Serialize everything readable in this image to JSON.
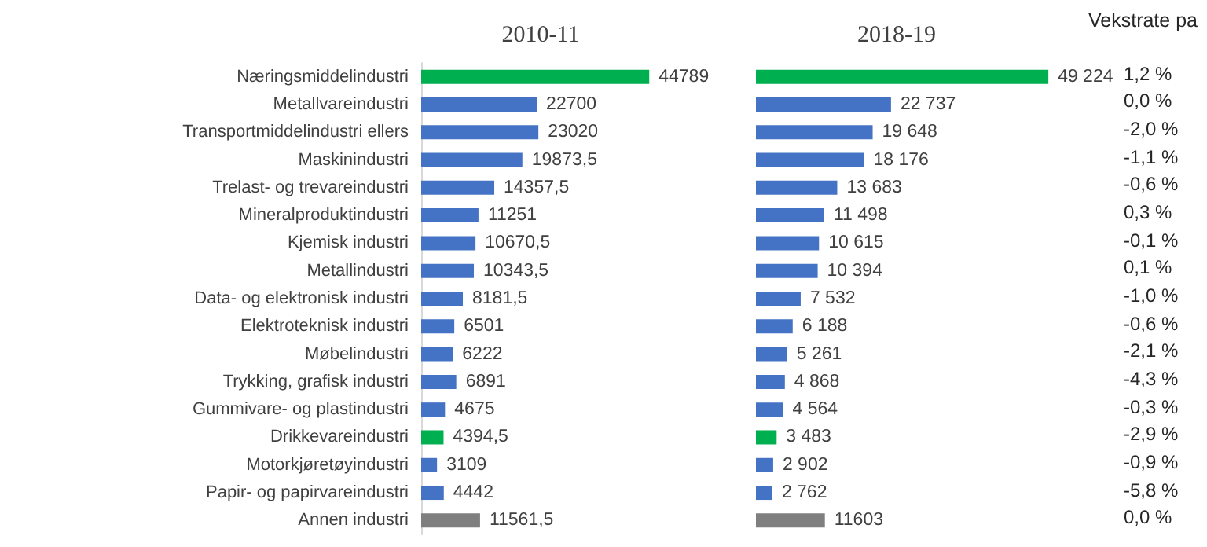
{
  "chart_data": [
    {
      "type": "bar",
      "orientation": "horizontal",
      "title": "2010-11",
      "categories": [
        "Næringsmiddelindustri",
        "Metallvareindustri",
        "Transportmiddelindustri ellers",
        "Maskinindustri",
        "Trelast- og trevareindustri",
        "Mineralproduktindustri",
        "Kjemisk industri",
        "Metallindustri",
        "Data- og elektronisk industri",
        "Elektroteknisk industri",
        "Møbelindustri",
        "Trykking, grafisk industri",
        "Gummivare- og plastindustri",
        "Drikkevareindustri",
        "Motorkjøretøyindustri",
        "Papir- og papirvareindustri",
        "Annen industri"
      ],
      "values": [
        44789,
        22700,
        23020,
        19873.5,
        14357.5,
        11251,
        10670.5,
        10343.5,
        8181.5,
        6501,
        6222,
        6891,
        4675,
        4394.5,
        3109,
        4442,
        11561.5
      ],
      "value_labels": [
        "44789",
        "22700",
        "23020",
        "19873,5",
        "14357,5",
        "11251",
        "10670,5",
        "10343,5",
        "8181,5",
        "6501",
        "6222",
        "6891",
        "4675",
        "4394,5",
        "3109",
        "4442",
        "11561,5"
      ],
      "colors": [
        "#00b050",
        "#4472c4",
        "#4472c4",
        "#4472c4",
        "#4472c4",
        "#4472c4",
        "#4472c4",
        "#4472c4",
        "#4472c4",
        "#4472c4",
        "#4472c4",
        "#4472c4",
        "#4472c4",
        "#00b050",
        "#4472c4",
        "#4472c4",
        "#7f7f7f"
      ]
    },
    {
      "type": "bar",
      "orientation": "horizontal",
      "title": "2018-19",
      "categories": [
        null,
        null,
        null,
        null,
        null,
        null,
        null,
        null,
        null,
        null,
        null,
        null,
        null,
        null,
        null,
        null,
        null
      ],
      "values": [
        49224,
        22737,
        19648,
        18176,
        13683,
        11498,
        10615,
        10394,
        7532,
        6188,
        5261,
        4868,
        4564,
        3483,
        2902,
        2762,
        11603
      ],
      "value_labels": [
        "49 224",
        "22 737",
        "19 648",
        "18 176",
        "13 683",
        "11 498",
        "10 615",
        "10 394",
        "7 532",
        "6 188",
        "5 261",
        "4 868",
        "4 564",
        "3 483",
        "2 902",
        "2 762",
        "11603"
      ],
      "colors": [
        "#00b050",
        "#4472c4",
        "#4472c4",
        "#4472c4",
        "#4472c4",
        "#4472c4",
        "#4472c4",
        "#4472c4",
        "#4472c4",
        "#4472c4",
        "#4472c4",
        "#4472c4",
        "#4472c4",
        "#00b050",
        "#4472c4",
        "#4472c4",
        "#7f7f7f"
      ]
    },
    {
      "type": "other",
      "title": "Vekstrate pa",
      "annotations": [
        "1,2 %",
        "0,0 %",
        "-2,0 %",
        "-1,1 %",
        "-0,6 %",
        "0,3 %",
        "-0,1 %",
        "0,1 %",
        "-1,0 %",
        "-0,6 %",
        "-2,1 %",
        "-4,3 %",
        "-0,3 %",
        "-2,9 %",
        "-0,9 %",
        "-5,8 %",
        "0,0 %"
      ]
    }
  ]
}
